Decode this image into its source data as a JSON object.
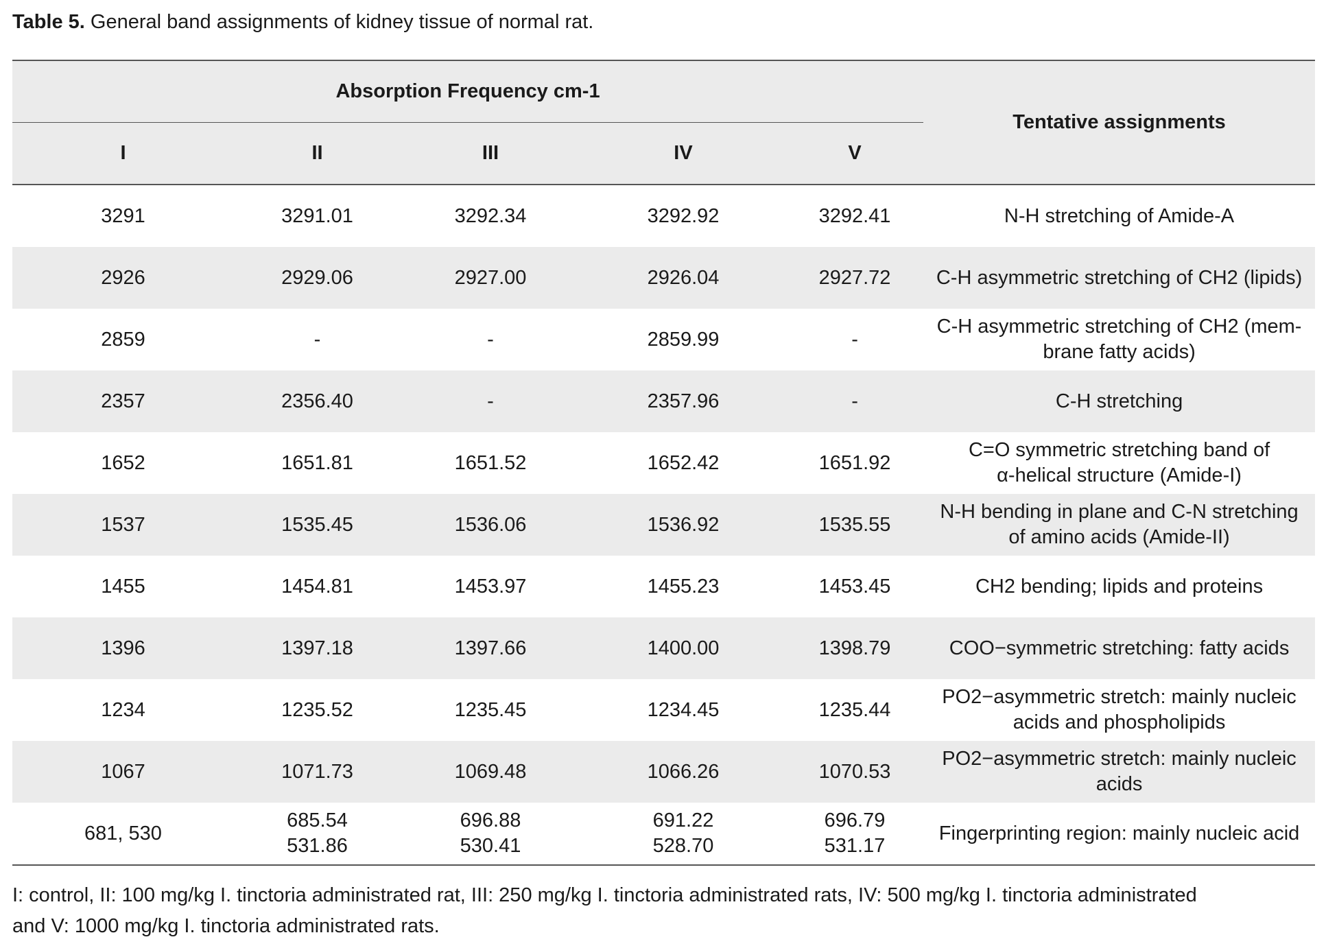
{
  "caption": {
    "label": "Table 5.",
    "text": " General band assignments of kidney tissue of normal rat."
  },
  "header": {
    "group_label": "Absorption Frequency cm-1",
    "assign_label": "Tentative assignments",
    "columns": [
      "I",
      "II",
      "III",
      "IV",
      "V"
    ]
  },
  "rows": [
    {
      "c1": "3291",
      "c2": [
        "3291.01"
      ],
      "c3": [
        "3292.34"
      ],
      "c4": [
        "3292.92"
      ],
      "c5": [
        "3292.41"
      ],
      "assign": [
        "N-H stretching of Amide-A"
      ]
    },
    {
      "c1": "2926",
      "c2": [
        "2929.06"
      ],
      "c3": [
        "2927.00"
      ],
      "c4": [
        "2926.04"
      ],
      "c5": [
        "2927.72"
      ],
      "assign": [
        "C-H asymmetric stretching of CH2 (lipids)"
      ]
    },
    {
      "c1": "2859",
      "c2": [
        "-"
      ],
      "c3": [
        "-"
      ],
      "c4": [
        "2859.99"
      ],
      "c5": [
        "-"
      ],
      "assign": [
        "C-H asymmetric stretching of CH2 (mem-",
        "brane fatty acids)"
      ]
    },
    {
      "c1": "2357",
      "c2": [
        "2356.40"
      ],
      "c3": [
        "-"
      ],
      "c4": [
        "2357.96"
      ],
      "c5": [
        "-"
      ],
      "assign": [
        "C-H stretching"
      ]
    },
    {
      "c1": "1652",
      "c2": [
        "1651.81"
      ],
      "c3": [
        "1651.52"
      ],
      "c4": [
        "1652.42"
      ],
      "c5": [
        "1651.92"
      ],
      "assign": [
        "C=O symmetric stretching band of",
        "α-helical structure (Amide-I)"
      ]
    },
    {
      "c1": "1537",
      "c2": [
        "1535.45"
      ],
      "c3": [
        "1536.06"
      ],
      "c4": [
        "1536.92"
      ],
      "c5": [
        "1535.55"
      ],
      "assign": [
        "N-H bending in plane and C-N stretching",
        "of amino acids (Amide-II)"
      ]
    },
    {
      "c1": "1455",
      "c2": [
        "1454.81"
      ],
      "c3": [
        "1453.97"
      ],
      "c4": [
        "1455.23"
      ],
      "c5": [
        "1453.45"
      ],
      "assign": [
        "CH2 bending; lipids and proteins"
      ]
    },
    {
      "c1": "1396",
      "c2": [
        "1397.18"
      ],
      "c3": [
        "1397.66"
      ],
      "c4": [
        "1400.00"
      ],
      "c5": [
        "1398.79"
      ],
      "assign": [
        "COO−symmetric stretching: fatty acids"
      ]
    },
    {
      "c1": "1234",
      "c2": [
        "1235.52"
      ],
      "c3": [
        "1235.45"
      ],
      "c4": [
        "1234.45"
      ],
      "c5": [
        "1235.44"
      ],
      "assign": [
        "PO2−asymmetric stretch: mainly nucleic",
        "acids and phospholipids"
      ]
    },
    {
      "c1": "1067",
      "c2": [
        "1071.73"
      ],
      "c3": [
        "1069.48"
      ],
      "c4": [
        "1066.26"
      ],
      "c5": [
        "1070.53"
      ],
      "assign": [
        "PO2−asymmetric stretch: mainly nucleic",
        "acids"
      ]
    },
    {
      "c1": "681, 530",
      "c2": [
        "685.54",
        "531.86"
      ],
      "c3": [
        "696.88",
        "530.41"
      ],
      "c4": [
        "691.22",
        "528.70"
      ],
      "c5": [
        "696.79",
        "531.17"
      ],
      "assign": [
        "Fingerprinting region: mainly nucleic acid"
      ]
    }
  ],
  "footnote": {
    "line1": "I: control, II:  100 mg/kg  I. tinctoria administrated rat,  III:  250 mg/kg  I. tinctoria administrated rats, IV: 500 mg/kg  I. tinctoria administrated",
    "line2": "and V: 1000 mg/kg  I. tinctoria administrated rats."
  }
}
